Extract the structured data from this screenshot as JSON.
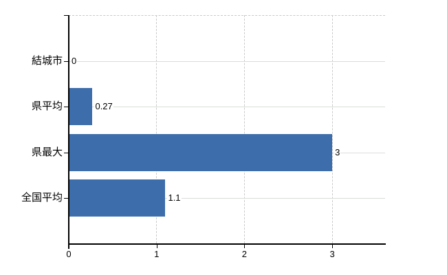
{
  "chart_data": {
    "type": "bar",
    "orientation": "horizontal",
    "title": "",
    "xlabel": "",
    "ylabel": "",
    "categories": [
      "結城市",
      "県平均",
      "県最大",
      "全国平均"
    ],
    "values": [
      0,
      0.27,
      3,
      1.1
    ],
    "value_labels": [
      "0",
      "0.27",
      "3",
      "1.1"
    ],
    "x_ticks": [
      0,
      1,
      2,
      3
    ],
    "x_tick_labels": [
      "0",
      "1",
      "2",
      "3"
    ],
    "xlim": [
      0,
      3.6
    ],
    "grid": "on",
    "legend": "none",
    "bar_color": "#3d6dab"
  },
  "colors": {
    "background": "#ffffff",
    "axis": "#000000",
    "gridline_horizontal": "#d9ddd9",
    "gridline_vertical": "#c9c9c9",
    "text": "#000000",
    "bar": "#3d6dab"
  }
}
